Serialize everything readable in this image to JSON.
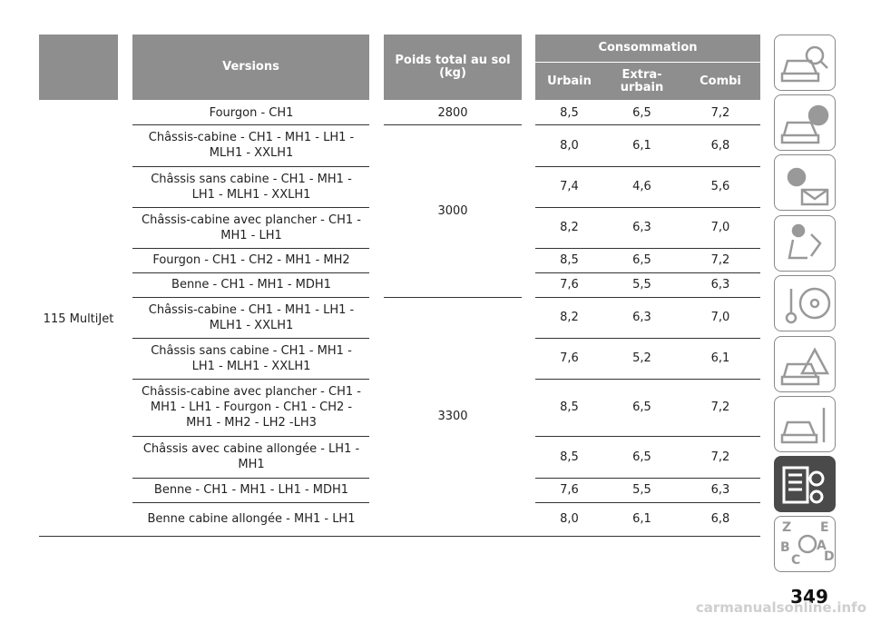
{
  "table": {
    "header": {
      "blank": "",
      "versions": "Versions",
      "poids": "Poids total au sol (kg)",
      "consommation": "Consommation",
      "urbain": "Urbain",
      "extra_urbain": "Extra-urbain",
      "combi": "Combi"
    },
    "engine": "115 MultiJet",
    "groups": [
      {
        "poids": "2800",
        "rows": [
          {
            "version": "Fourgon - CH1",
            "urbain": "8,5",
            "extra_urbain": "6,5",
            "combi": "7,2"
          }
        ]
      },
      {
        "poids": "3000",
        "rows": [
          {
            "version": "Châssis-cabine - CH1 - MH1 - LH1 - MLH1 - XXLH1",
            "urbain": "8,0",
            "extra_urbain": "6,1",
            "combi": "6,8"
          },
          {
            "version": "Châssis sans cabine - CH1 - MH1 - LH1 - MLH1 - XXLH1",
            "urbain": "7,4",
            "extra_urbain": "4,6",
            "combi": "5,6"
          },
          {
            "version": "Châssis-cabine avec plancher - CH1 - MH1 - LH1",
            "urbain": "8,2",
            "extra_urbain": "6,3",
            "combi": "7,0"
          },
          {
            "version": "Fourgon - CH1 - CH2 - MH1 - MH2",
            "urbain": "8,5",
            "extra_urbain": "6,5",
            "combi": "7,2"
          },
          {
            "version": "Benne - CH1 - MH1 - MDH1",
            "urbain": "7,6",
            "extra_urbain": "5,5",
            "combi": "6,3"
          }
        ]
      },
      {
        "poids": "3300",
        "rows": [
          {
            "version": "Châssis-cabine - CH1 - MH1 - LH1 - MLH1 - XXLH1",
            "urbain": "8,2",
            "extra_urbain": "6,3",
            "combi": "7,0"
          },
          {
            "version": "Châssis sans cabine - CH1 - MH1 - LH1 - MLH1 - XXLH1",
            "urbain": "7,6",
            "extra_urbain": "5,2",
            "combi": "6,1"
          },
          {
            "version": "Châssis-cabine avec plancher - CH1 - MH1 - LH1 - Fourgon - CH1 - CH2 - MH1 - MH2 - LH2 -LH3",
            "urbain": "8,5",
            "extra_urbain": "6,5",
            "combi": "7,2"
          },
          {
            "version": "Châssis avec cabine allongée - LH1 - MH1",
            "urbain": "8,5",
            "extra_urbain": "6,5",
            "combi": "7,2"
          },
          {
            "version": "Benne - CH1 - MH1 - LH1 - MDH1",
            "urbain": "7,6",
            "extra_urbain": "5,5",
            "combi": "6,3"
          },
          {
            "version": "Benne cabine allongée - MH1 - LH1",
            "urbain": "8,0",
            "extra_urbain": "6,1",
            "combi": "6,8"
          }
        ]
      }
    ]
  },
  "page_number": "349",
  "watermark": "carmanualsonline.info"
}
